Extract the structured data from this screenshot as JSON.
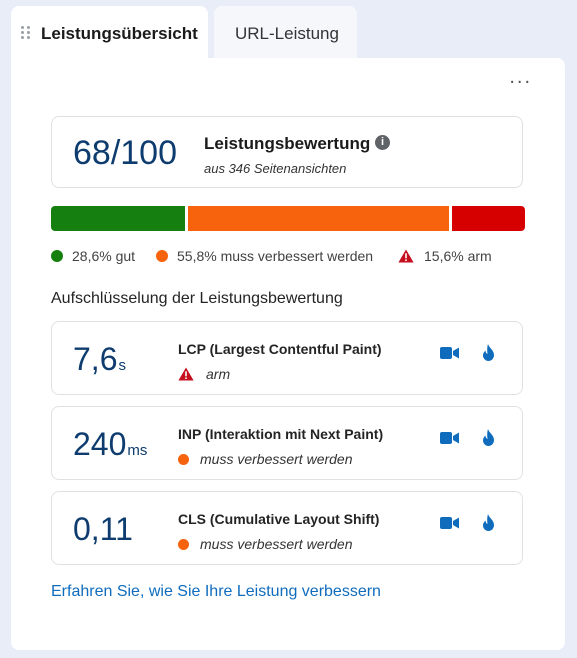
{
  "tabs": [
    {
      "label": "Leistungsübersicht",
      "active": true
    },
    {
      "label": "URL-Leistung",
      "active": false
    }
  ],
  "more_menu_label": "...",
  "score": {
    "value": "68/100",
    "title": "Leistungsbewertung",
    "info_icon": "i",
    "subtitle": "aus 346 Seitenansichten"
  },
  "distribution": {
    "good_fraction": 0.286,
    "needs_improvement_fraction": 0.558,
    "poor_fraction": 0.156,
    "good_label": "28,6% gut",
    "needs_improvement_label": "55,8% muss verbessert werden",
    "poor_label": "15,6% arm"
  },
  "breakdown_title": "Aufschlüsselung der Leistungsbewertung",
  "metrics": [
    {
      "value": "7,6",
      "unit": "s",
      "name": "LCP (Largest Contentful Paint)",
      "status": "arm",
      "status_icon": "warning-icon"
    },
    {
      "value": "240",
      "unit": "ms",
      "name": "INP (Interaktion mit Next Paint)",
      "status": "muss verbessert werden",
      "status_icon": "orange-dot"
    },
    {
      "value": "0,11",
      "unit": "",
      "name": "CLS (Cumulative Layout Shift)",
      "status": "muss verbessert werden",
      "status_icon": "orange-dot"
    }
  ],
  "metric_action_icons": [
    "video-camera-icon",
    "flame-icon"
  ],
  "learn_more_link": "Erfahren Sie, wie Sie Ihre Leistung verbessern",
  "colors": {
    "good": "#15800f",
    "needs_improvement": "#f7630c",
    "poor": "#d70000",
    "score_text": "#0e3c6e",
    "link": "#0f6cbd",
    "icon_blue": "#0f6cbd"
  }
}
